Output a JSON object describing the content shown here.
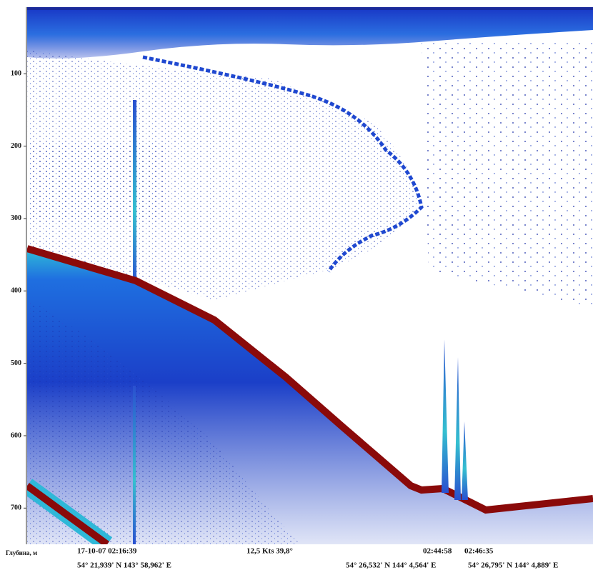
{
  "depth_axis": {
    "ylim": [
      8,
      750
    ],
    "yticks": [
      100,
      200,
      300,
      400,
      500,
      600,
      700
    ],
    "label": "Глубина, м"
  },
  "footer": {
    "start": {
      "datetime": "17-10-07   02:16:39",
      "position": "54° 21,939' N   143° 58,962' E"
    },
    "speed_heading": "12,5 Kts    39,8°",
    "mark1": {
      "time": "02:44:58",
      "position": "54° 26,532' N  144° 4,564' E"
    },
    "mark2": {
      "time": "02:46:35",
      "position": "54° 26,795' N  144° 4,889' E"
    }
  }
}
